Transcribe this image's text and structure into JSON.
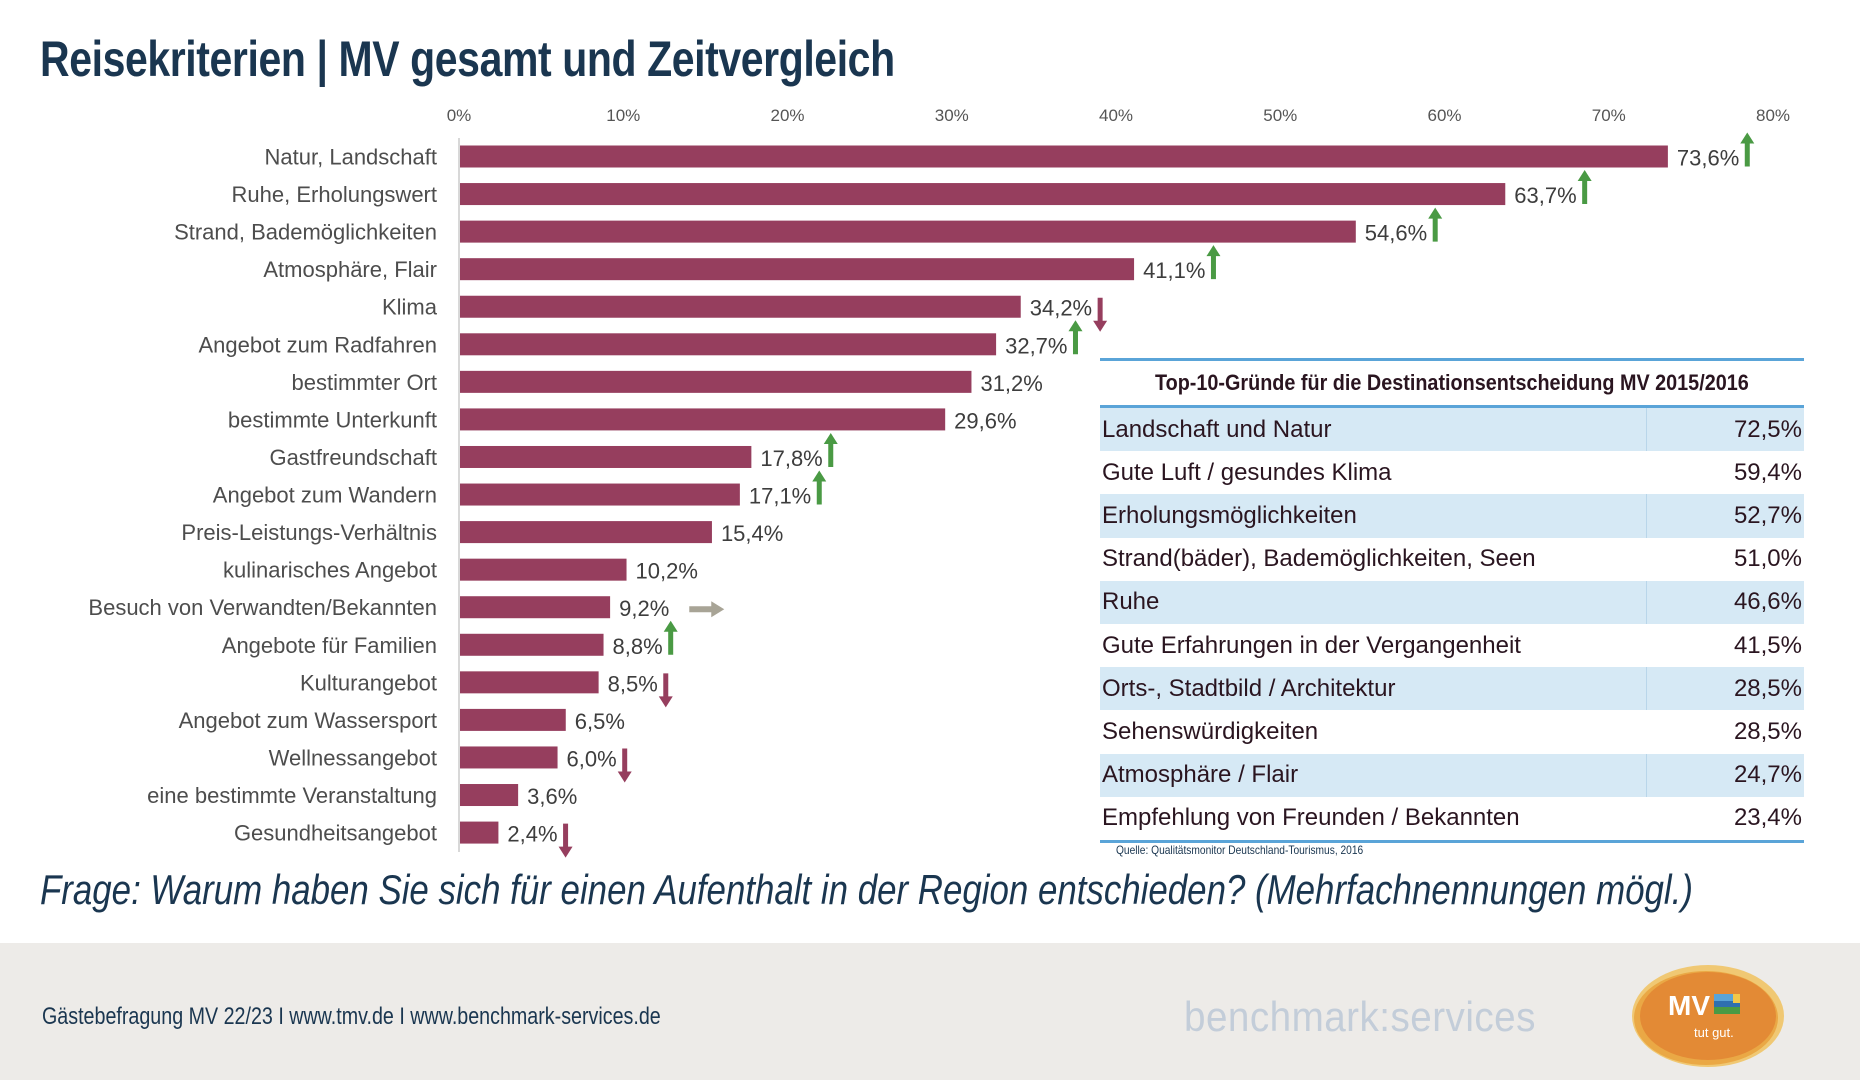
{
  "title": "Reisekriterien | MV gesamt und Zeitvergleich",
  "colors": {
    "bar": "#963e5e",
    "arrow_up": "#4a9a44",
    "arrow_down": "#963e5e",
    "arrow_neutral": "#a8a496",
    "title": "#1a3650",
    "table_accent": "#5aa4d8",
    "table_stripe": "#d6e9f5",
    "logo_orange": "#e38a35",
    "brand_text": "#c3cdd9"
  },
  "chart_data": {
    "type": "bar",
    "orientation": "horizontal",
    "title": "Reisekriterien | MV gesamt und Zeitvergleich",
    "xlabel": "",
    "ylabel": "",
    "xlim": [
      0,
      80
    ],
    "x_ticks": [
      0,
      10,
      20,
      30,
      40,
      50,
      60,
      70,
      80
    ],
    "x_tick_labels": [
      "0%",
      "10%",
      "20%",
      "30%",
      "40%",
      "50%",
      "60%",
      "70%",
      "80%"
    ],
    "x_axis_position": "top",
    "grid": false,
    "categories": [
      "Natur, Landschaft",
      "Ruhe, Erholungswert",
      "Strand, Bademöglichkeiten",
      "Atmosphäre, Flair",
      "Klima",
      "Angebot zum Radfahren",
      "bestimmter Ort",
      "bestimmte Unterkunft",
      "Gastfreundschaft",
      "Angebot zum Wandern",
      "Preis-Leistungs-Verhältnis",
      "kulinarisches Angebot",
      "Besuch von Verwandten/Bekannten",
      "Angebote für Familien",
      "Kulturangebot",
      "Angebot zum Wassersport",
      "Wellnessangebot",
      "eine bestimmte Veranstaltung",
      "Gesundheitsangebot"
    ],
    "values": [
      73.6,
      63.7,
      54.6,
      41.1,
      34.2,
      32.7,
      31.2,
      29.6,
      17.8,
      17.1,
      15.4,
      10.2,
      9.2,
      8.8,
      8.5,
      6.5,
      6.0,
      3.6,
      2.4
    ],
    "value_labels": [
      "73,6%",
      "63,7%",
      "54,6%",
      "41,1%",
      "34,2%",
      "32,7%",
      "31,2%",
      "29,6%",
      "17,8%",
      "17,1%",
      "15,4%",
      "10,2%",
      "9,2%",
      "8,8%",
      "8,5%",
      "6,5%",
      "6,0%",
      "3,6%",
      "2,4%"
    ],
    "trend": [
      "up",
      "up",
      "up",
      "up",
      "down",
      "up",
      "",
      "",
      "up",
      "up",
      "",
      "",
      "neutral",
      "up",
      "down",
      "",
      "down",
      "",
      "down"
    ],
    "legend": null
  },
  "table": {
    "title": "Top-10-Gründe für die Destinationsentscheidung MV 2015/2016",
    "rows": [
      {
        "label": "Landschaft und Natur",
        "value": "72,5%"
      },
      {
        "label": "Gute Luft / gesundes Klima",
        "value": "59,4%"
      },
      {
        "label": "Erholungsmöglichkeiten",
        "value": "52,7%"
      },
      {
        "label": "Strand(bäder), Bademöglichkeiten, Seen",
        "value": "51,0%"
      },
      {
        "label": "Ruhe",
        "value": "46,6%"
      },
      {
        "label": "Gute Erfahrungen in der Vergangenheit",
        "value": "41,5%"
      },
      {
        "label": "Orts-, Stadtbild / Architektur",
        "value": "28,5%"
      },
      {
        "label": "Sehenswürdigkeiten",
        "value": "28,5%"
      },
      {
        "label": "Atmosphäre / Flair",
        "value": "24,7%"
      },
      {
        "label": "Empfehlung von Freunden / Bekannten",
        "value": "23,4%"
      }
    ],
    "source": "Quelle: Qualitätsmonitor Deutschland-Tourismus, 2016"
  },
  "question": "Frage: Warum haben Sie sich für einen Aufenthalt in der Region entschieden? (Mehrfachnennungen mögl.)",
  "footer": {
    "text": "Gästebefragung MV 22/23  I  www.tmv.de  I www.benchmark-services.de",
    "brand": "benchmark:services",
    "logo_main": "MV",
    "logo_sub": "tut gut."
  }
}
